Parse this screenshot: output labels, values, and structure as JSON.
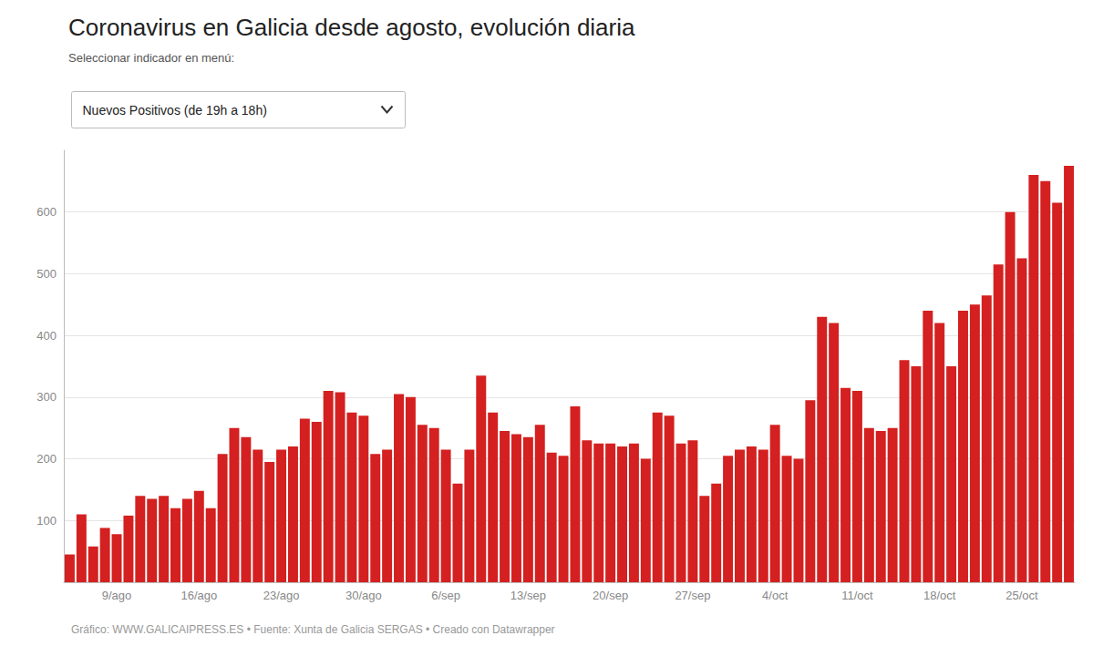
{
  "chart_data": {
    "type": "bar",
    "title": "Coronavirus en Galicia desde agosto, evolución diaria",
    "subtitle": "Seleccionar indicador en menú:",
    "annotations": [
      "Nuevos Positivos (de 19h a 18h)",
      "Gráfico: WWW.GALICAIPRESS.ES • Fuente: Xunta de Galicia SERGAS • Creado con Datawrapper"
    ],
    "categories": [
      null,
      null,
      null,
      null,
      "9/ago",
      null,
      null,
      null,
      null,
      null,
      null,
      "16/ago",
      null,
      null,
      null,
      null,
      null,
      null,
      "23/ago",
      null,
      null,
      null,
      null,
      null,
      null,
      "30/ago",
      null,
      null,
      null,
      null,
      null,
      null,
      "6/sep",
      null,
      null,
      null,
      null,
      null,
      null,
      "13/sep",
      null,
      null,
      null,
      null,
      null,
      null,
      "20/sep",
      null,
      null,
      null,
      null,
      null,
      null,
      "27/sep",
      null,
      null,
      null,
      null,
      null,
      null,
      "4/oct",
      null,
      null,
      null,
      null,
      null,
      null,
      "11/oct",
      null,
      null,
      null,
      null,
      null,
      null,
      "18/oct",
      null,
      null,
      null,
      null,
      null,
      null,
      "25/oct",
      null,
      null,
      null,
      null
    ],
    "values": [
      45,
      110,
      58,
      88,
      78,
      108,
      140,
      135,
      140,
      120,
      135,
      148,
      120,
      208,
      250,
      235,
      215,
      195,
      215,
      220,
      265,
      260,
      310,
      308,
      275,
      270,
      208,
      215,
      305,
      300,
      255,
      250,
      215,
      160,
      215,
      335,
      275,
      245,
      240,
      235,
      255,
      210,
      205,
      285,
      230,
      225,
      225,
      220,
      225,
      200,
      275,
      270,
      225,
      230,
      140,
      160,
      205,
      215,
      220,
      215,
      255,
      205,
      200,
      295,
      430,
      420,
      315,
      310,
      250,
      245,
      250,
      360,
      350,
      440,
      420,
      350,
      440,
      450,
      465,
      515,
      600,
      525,
      660,
      650,
      615,
      675
    ],
    "color": "#d42020",
    "ylim": [
      0,
      700
    ],
    "yticks": [
      100,
      200,
      300,
      400,
      500,
      600
    ],
    "grid": true
  }
}
